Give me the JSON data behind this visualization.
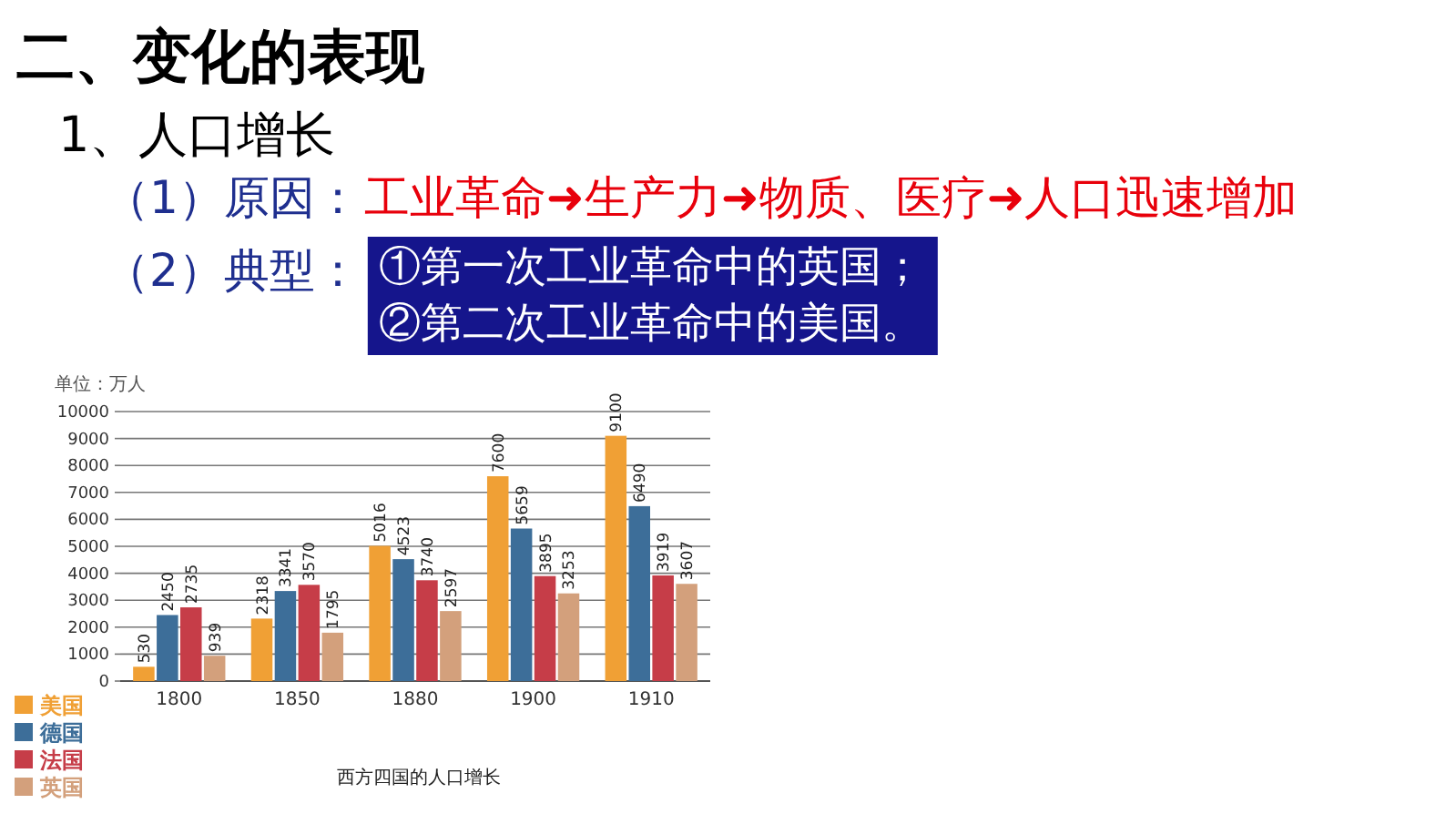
{
  "chart_data": {
    "type": "bar",
    "title": "二、变化的表现",
    "subtitle": "1、人口增长",
    "ylabel": "单位：万人",
    "categories": [
      "1800",
      "1850",
      "1880",
      "1900",
      "1910"
    ],
    "series": [
      {
        "name": "美国",
        "color": "#f0a035",
        "values": [
          530,
          2318,
          5016,
          7600,
          9100
        ]
      },
      {
        "name": "德国",
        "color": "#3d6e99",
        "values": [
          2450,
          3341,
          4523,
          5659,
          6490
        ]
      },
      {
        "name": "法国",
        "color": "#c63d48",
        "values": [
          2735,
          3570,
          3740,
          3895,
          3919
        ]
      },
      {
        "name": "英国",
        "color": "#d3a07c",
        "values": [
          939,
          1795,
          2597,
          3253,
          3607
        ]
      }
    ],
    "ylim": [
      0,
      10000
    ],
    "yticks": [
      0,
      1000,
      2000,
      3000,
      4000,
      5000,
      6000,
      7000,
      8000,
      9000,
      10000
    ],
    "grid": "y",
    "legend": "bottom left",
    "data_labels": true,
    "annotations": [
      "（1）原因：",
      "工业革命➜生产力➜物质、医疗➜人口迅速增加",
      "（2）典型：",
      "①第一次工业革命中的英国；",
      "②第二次工业革命中的美国。",
      "西方四国的人口增长"
    ]
  }
}
